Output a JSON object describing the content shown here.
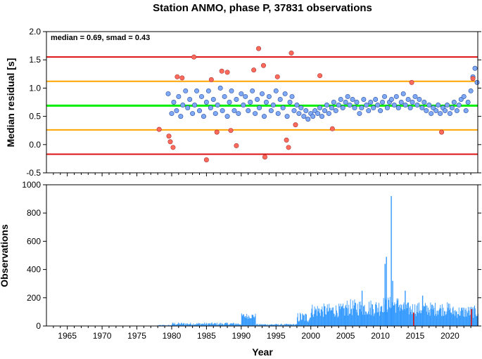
{
  "chart_data": [
    {
      "type": "scatter",
      "title": "Station ANMO, phase P, 37831 observations",
      "ylabel": "Median residual [s]",
      "annotation": "median = 0.69, smad = 0.43",
      "xlim": [
        1962,
        2024
      ],
      "ylim": [
        -0.5,
        2.0
      ],
      "yticks": [
        -0.5,
        0.0,
        0.5,
        1.0,
        1.5,
        2.0
      ],
      "ytick_labels": [
        "-0.5",
        "0.0",
        "0.5",
        "1.0",
        "1.5",
        "2.0"
      ],
      "reference_lines": [
        {
          "y": 1.55,
          "color": "#dd1111"
        },
        {
          "y": 1.12,
          "color": "#ffa500"
        },
        {
          "y": 0.69,
          "color": "#00ee00"
        },
        {
          "y": 0.26,
          "color": "#ffa500"
        },
        {
          "y": -0.17,
          "color": "#dd1111"
        }
      ],
      "series": [
        {
          "color": "#7fa8f5",
          "points": [
            [
              1979.5,
              0.9
            ],
            [
              1980.0,
              0.55
            ],
            [
              1980.3,
              0.75
            ],
            [
              1980.7,
              0.6
            ],
            [
              1981.0,
              0.85
            ],
            [
              1981.3,
              0.5
            ],
            [
              1981.6,
              0.7
            ],
            [
              1982.0,
              0.95
            ],
            [
              1982.3,
              0.65
            ],
            [
              1982.6,
              0.8
            ],
            [
              1983.0,
              0.55
            ],
            [
              1983.3,
              0.7
            ],
            [
              1983.6,
              0.95
            ],
            [
              1984.0,
              0.6
            ],
            [
              1984.3,
              0.85
            ],
            [
              1984.6,
              0.5
            ],
            [
              1985.0,
              0.75
            ],
            [
              1985.3,
              0.95
            ],
            [
              1985.6,
              0.65
            ],
            [
              1986.0,
              0.8
            ],
            [
              1986.3,
              0.55
            ],
            [
              1986.6,
              0.7
            ],
            [
              1987.0,
              1.0
            ],
            [
              1987.3,
              0.6
            ],
            [
              1987.6,
              0.85
            ],
            [
              1988.0,
              0.5
            ],
            [
              1988.3,
              0.75
            ],
            [
              1988.6,
              0.95
            ],
            [
              1989.0,
              0.6
            ],
            [
              1989.3,
              0.8
            ],
            [
              1989.6,
              0.55
            ],
            [
              1990.0,
              0.9
            ],
            [
              1990.3,
              0.7
            ],
            [
              1990.6,
              0.85
            ],
            [
              1991.0,
              0.6
            ],
            [
              1991.3,
              0.75
            ],
            [
              1991.6,
              0.95
            ],
            [
              1992.0,
              0.55
            ],
            [
              1992.3,
              0.8
            ],
            [
              1992.6,
              0.65
            ],
            [
              1993.0,
              0.9
            ],
            [
              1993.3,
              0.5
            ],
            [
              1993.6,
              0.75
            ],
            [
              1994.0,
              0.85
            ],
            [
              1994.3,
              0.6
            ],
            [
              1994.6,
              0.7
            ],
            [
              1995.0,
              0.95
            ],
            [
              1995.3,
              0.55
            ],
            [
              1995.6,
              0.8
            ],
            [
              1996.0,
              0.65
            ],
            [
              1996.3,
              0.9
            ],
            [
              1996.6,
              0.5
            ],
            [
              1997.0,
              0.75
            ],
            [
              1997.3,
              0.85
            ],
            [
              1997.6,
              0.6
            ],
            [
              1998.0,
              0.7
            ],
            [
              1998.3,
              0.55
            ],
            [
              1998.6,
              0.65
            ],
            [
              1999.0,
              0.5
            ],
            [
              1999.3,
              0.6
            ],
            [
              1999.6,
              0.45
            ],
            [
              2000.0,
              0.55
            ],
            [
              2000.3,
              0.5
            ],
            [
              2000.6,
              0.6
            ],
            [
              2001.0,
              0.55
            ],
            [
              2001.3,
              0.65
            ],
            [
              2001.6,
              0.5
            ],
            [
              2002.0,
              0.6
            ],
            [
              2002.3,
              0.7
            ],
            [
              2002.6,
              0.55
            ],
            [
              2003.0,
              0.65
            ],
            [
              2003.3,
              0.75
            ],
            [
              2003.6,
              0.6
            ],
            [
              2004.0,
              0.7
            ],
            [
              2004.3,
              0.8
            ],
            [
              2004.6,
              0.65
            ],
            [
              2005.0,
              0.75
            ],
            [
              2005.3,
              0.85
            ],
            [
              2005.6,
              0.7
            ],
            [
              2006.0,
              0.8
            ],
            [
              2006.3,
              0.65
            ],
            [
              2006.6,
              0.75
            ],
            [
              2007.0,
              0.55
            ],
            [
              2007.3,
              0.65
            ],
            [
              2007.6,
              0.8
            ],
            [
              2008.0,
              0.7
            ],
            [
              2008.3,
              0.6
            ],
            [
              2008.6,
              0.75
            ],
            [
              2009.0,
              0.65
            ],
            [
              2009.3,
              0.8
            ],
            [
              2009.6,
              0.7
            ],
            [
              2010.0,
              0.6
            ],
            [
              2010.3,
              0.75
            ],
            [
              2010.6,
              0.85
            ],
            [
              2011.0,
              0.65
            ],
            [
              2011.3,
              0.75
            ],
            [
              2011.6,
              0.8
            ],
            [
              2012.0,
              0.7
            ],
            [
              2012.3,
              0.85
            ],
            [
              2012.6,
              0.65
            ],
            [
              2013.0,
              0.75
            ],
            [
              2013.3,
              0.9
            ],
            [
              2013.6,
              0.7
            ],
            [
              2014.0,
              0.8
            ],
            [
              2014.3,
              0.65
            ],
            [
              2014.6,
              0.75
            ],
            [
              2015.0,
              0.85
            ],
            [
              2015.3,
              0.7
            ],
            [
              2015.6,
              0.8
            ],
            [
              2016.0,
              0.65
            ],
            [
              2016.3,
              0.75
            ],
            [
              2016.6,
              0.6
            ],
            [
              2017.0,
              0.7
            ],
            [
              2017.3,
              0.55
            ],
            [
              2017.6,
              0.65
            ],
            [
              2018.0,
              0.6
            ],
            [
              2018.3,
              0.7
            ],
            [
              2018.6,
              0.55
            ],
            [
              2019.0,
              0.65
            ],
            [
              2019.3,
              0.6
            ],
            [
              2019.6,
              0.7
            ],
            [
              2020.0,
              0.55
            ],
            [
              2020.3,
              0.65
            ],
            [
              2020.6,
              0.75
            ],
            [
              2021.0,
              0.6
            ],
            [
              2021.3,
              0.7
            ],
            [
              2021.6,
              0.8
            ],
            [
              2022.0,
              0.85
            ],
            [
              2022.3,
              0.6
            ],
            [
              2022.6,
              0.75
            ],
            [
              2023.0,
              0.95
            ],
            [
              2023.3,
              1.2
            ],
            [
              2023.6,
              1.35
            ],
            [
              2023.9,
              1.1
            ]
          ]
        },
        {
          "color": "#ff6b5b",
          "points": [
            [
              1978.2,
              0.27
            ],
            [
              1979.6,
              0.15
            ],
            [
              1979.8,
              0.05
            ],
            [
              1980.2,
              -0.05
            ],
            [
              1980.8,
              1.2
            ],
            [
              1981.5,
              1.18
            ],
            [
              1983.2,
              1.55
            ],
            [
              1985.0,
              -0.27
            ],
            [
              1985.7,
              1.15
            ],
            [
              1986.5,
              0.22
            ],
            [
              1987.2,
              1.3
            ],
            [
              1988.0,
              1.28
            ],
            [
              1988.5,
              0.25
            ],
            [
              1989.3,
              -0.02
            ],
            [
              1991.8,
              1.32
            ],
            [
              1992.5,
              1.7
            ],
            [
              1993.2,
              1.4
            ],
            [
              1993.4,
              -0.22
            ],
            [
              1995.2,
              1.2
            ],
            [
              1996.5,
              0.08
            ],
            [
              1996.8,
              -0.05
            ],
            [
              1997.2,
              1.62
            ],
            [
              1997.8,
              0.35
            ],
            [
              2001.3,
              1.22
            ],
            [
              2003.1,
              0.28
            ],
            [
              2014.5,
              1.1
            ],
            [
              2018.8,
              0.22
            ],
            [
              2023.3,
              1.17
            ]
          ]
        }
      ]
    },
    {
      "type": "bar",
      "ylabel": "Observations",
      "xlabel": "Year",
      "xlim": [
        1962,
        2024
      ],
      "ylim": [
        0,
        1000
      ],
      "xticks": [
        1965,
        1970,
        1975,
        1980,
        1985,
        1990,
        1995,
        2000,
        2005,
        2010,
        2015,
        2020
      ],
      "xtick_labels": [
        "1965",
        "1970",
        "1975",
        "1980",
        "1985",
        "1990",
        "1995",
        "2000",
        "2005",
        "2010",
        "2015",
        "2020"
      ],
      "yticks": [
        0,
        200,
        400,
        600,
        800,
        1000
      ],
      "ytick_labels": [
        "0",
        "200",
        "400",
        "600",
        "800",
        "1000"
      ],
      "bar_color": "#3399ff",
      "outlier_color": "#dd1111",
      "segments": [
        {
          "start": 1978.0,
          "end": 1980.0,
          "level": 5,
          "spread": 3
        },
        {
          "start": 1980.0,
          "end": 1990.0,
          "level": 15,
          "spread": 10
        },
        {
          "start": 1990.0,
          "end": 1992.0,
          "level": 70,
          "spread": 20
        },
        {
          "start": 1992.0,
          "end": 1998.0,
          "level": 10,
          "spread": 6
        },
        {
          "start": 1998.0,
          "end": 2000.0,
          "level": 60,
          "spread": 40
        },
        {
          "start": 2000.0,
          "end": 2005.0,
          "level": 110,
          "spread": 50
        },
        {
          "start": 2005.0,
          "end": 2010.0,
          "level": 130,
          "spread": 60
        },
        {
          "start": 2010.0,
          "end": 2013.0,
          "level": 150,
          "spread": 60
        },
        {
          "start": 2013.0,
          "end": 2020.0,
          "level": 120,
          "spread": 50
        },
        {
          "start": 2020.0,
          "end": 2024.0,
          "level": 100,
          "spread": 45
        }
      ],
      "peaks": [
        {
          "x": 2007.3,
          "y": 250
        },
        {
          "x": 2010.6,
          "y": 440
        },
        {
          "x": 2010.8,
          "y": 490
        },
        {
          "x": 2011.5,
          "y": 920
        },
        {
          "x": 2011.7,
          "y": 320
        },
        {
          "x": 2013.5,
          "y": 250
        },
        {
          "x": 2016.0,
          "y": 215
        }
      ],
      "outlier_marks": [
        {
          "x": 2014.7,
          "y": 95
        },
        {
          "x": 2023.0,
          "y": 120
        }
      ]
    }
  ]
}
